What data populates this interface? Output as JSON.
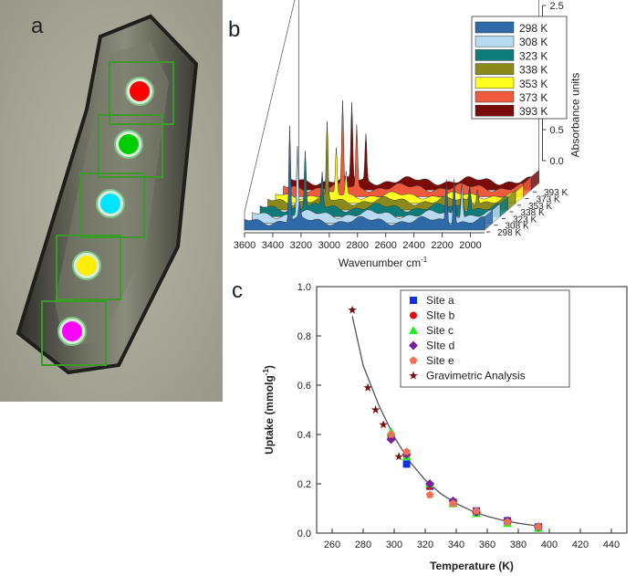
{
  "panels": {
    "a": "a",
    "b": "b",
    "c": "c"
  },
  "photo": {
    "sites": [
      {
        "name": "site-e",
        "color": "#ff0000"
      },
      {
        "name": "site-d",
        "color": "#00cc00"
      },
      {
        "name": "site-c",
        "color": "#00e5ff"
      },
      {
        "name": "site-b",
        "color": "#ffee00"
      },
      {
        "name": "site-a",
        "color": "#ff00ff"
      }
    ],
    "box_color": "#3c9a2c"
  },
  "chart_data": [
    {
      "type": "area",
      "xlabel": "Wavenumber cm",
      "xlabel_sup": "-1",
      "zlabel": "Absorbance units",
      "x_ticks": [
        "3600",
        "3400",
        "3200",
        "3000",
        "2800",
        "2600",
        "2400",
        "2200",
        "2000"
      ],
      "xlim": [
        3600,
        1900
      ],
      "z_ticks": [
        "0.0",
        "0.5",
        "1.0",
        "1.5",
        "2.0",
        "2.5"
      ],
      "zlim": [
        0,
        2.5
      ],
      "series": [
        {
          "name": "298 K",
          "color": "#2f6aa8",
          "peaks": [
            {
              "x": 3280,
              "h": 1.25
            },
            {
              "x": 3210,
              "h": 0.2
            },
            {
              "x": 2170,
              "h": 0.55
            },
            {
              "x": 2115,
              "h": 0.6
            }
          ],
          "baseline": 0.15
        },
        {
          "name": "308 K",
          "color": "#b8daf0",
          "peaks": [
            {
              "x": 3280,
              "h": 0.9
            },
            {
              "x": 2170,
              "h": 0.4
            },
            {
              "x": 2115,
              "h": 0.45
            }
          ],
          "baseline": 0.15
        },
        {
          "name": "323 K",
          "color": "#0e7b7b",
          "peaks": [
            {
              "x": 3280,
              "h": 0.75
            },
            {
              "x": 3160,
              "h": 0.45
            },
            {
              "x": 2170,
              "h": 0.3
            },
            {
              "x": 2115,
              "h": 0.3
            }
          ],
          "baseline": 0.15
        },
        {
          "name": "338 K",
          "color": "#8a8a1c",
          "peaks": [
            {
              "x": 3180,
              "h": 1.0
            },
            {
              "x": 2170,
              "h": 0.2
            },
            {
              "x": 2115,
              "h": 0.2
            }
          ],
          "baseline": 0.15
        },
        {
          "name": "353 K",
          "color": "#ffff22",
          "peaks": [
            {
              "x": 3170,
              "h": 0.6
            },
            {
              "x": 3100,
              "h": 0.3
            }
          ],
          "baseline": 0.13
        },
        {
          "name": "373 K",
          "color": "#ee5a3c",
          "peaks": [
            {
              "x": 3180,
              "h": 1.1
            },
            {
              "x": 3080,
              "h": 0.8
            }
          ],
          "baseline": 0.15
        },
        {
          "name": "393 K",
          "color": "#7a0b0b",
          "peaks": [
            {
              "x": 3170,
              "h": 1.0
            },
            {
              "x": 3070,
              "h": 0.6
            }
          ],
          "baseline": 0.15
        }
      ],
      "depth_labels": [
        "298 K",
        "308 K",
        "323 K",
        "338 K",
        "353 K",
        "373 K",
        "393 K"
      ],
      "legend_position": "top-right"
    },
    {
      "type": "scatter",
      "xlabel": "Temperature (K)",
      "ylabel": "Uptake (mmolg",
      "ylabel_sup": "-1",
      "ylabel_end": ")",
      "xlim": [
        250,
        450
      ],
      "ylim": [
        0.0,
        1.0
      ],
      "x_ticks": [
        "260",
        "280",
        "300",
        "320",
        "340",
        "360",
        "380",
        "400",
        "420",
        "440"
      ],
      "y_ticks": [
        "0.0",
        "0.2",
        "0.4",
        "0.6",
        "0.8",
        "1.0"
      ],
      "series": [
        {
          "name": "Site a",
          "marker": "square",
          "color": "#1030e0",
          "x": [
            298,
            308,
            323,
            338,
            353,
            373,
            393
          ],
          "y": [
            0.39,
            0.28,
            0.19,
            0.125,
            0.09,
            0.05,
            0.025
          ]
        },
        {
          "name": "SIte b",
          "marker": "circle",
          "color": "#e01010",
          "x": [
            298,
            308,
            323,
            338,
            353,
            373,
            393
          ],
          "y": [
            0.385,
            0.315,
            0.19,
            0.12,
            0.08,
            0.05,
            0.025
          ]
        },
        {
          "name": "Site c",
          "marker": "triangle",
          "color": "#22ee22",
          "x": [
            298,
            308,
            323,
            338,
            353,
            373,
            393
          ],
          "y": [
            0.41,
            0.31,
            0.2,
            0.12,
            0.08,
            0.04,
            0.02
          ]
        },
        {
          "name": "SIte d",
          "marker": "diamond",
          "color": "#7a1ea0",
          "x": [
            298,
            308,
            323,
            338,
            353,
            373,
            393
          ],
          "y": [
            0.38,
            0.32,
            0.2,
            0.13,
            0.085,
            0.05,
            0.025
          ]
        },
        {
          "name": "Site e",
          "marker": "pentagon",
          "color": "#f07050",
          "x": [
            298,
            308,
            323,
            338,
            353,
            373,
            393
          ],
          "y": [
            0.4,
            0.33,
            0.155,
            0.12,
            0.09,
            0.045,
            0.025
          ]
        },
        {
          "name": "Gravimetric Analysis",
          "marker": "star",
          "color": "#7a1010",
          "x": [
            273,
            283,
            288,
            293,
            303
          ],
          "y": [
            0.905,
            0.59,
            0.5,
            0.44,
            0.31
          ]
        }
      ],
      "fit_curve": {
        "x": [
          273,
          280,
          290,
          300,
          310,
          320,
          330,
          340,
          350,
          360,
          370,
          380,
          393
        ],
        "y": [
          0.88,
          0.68,
          0.52,
          0.39,
          0.29,
          0.215,
          0.16,
          0.12,
          0.09,
          0.068,
          0.052,
          0.04,
          0.028
        ]
      },
      "legend_position": "top-right",
      "grid": false
    }
  ]
}
